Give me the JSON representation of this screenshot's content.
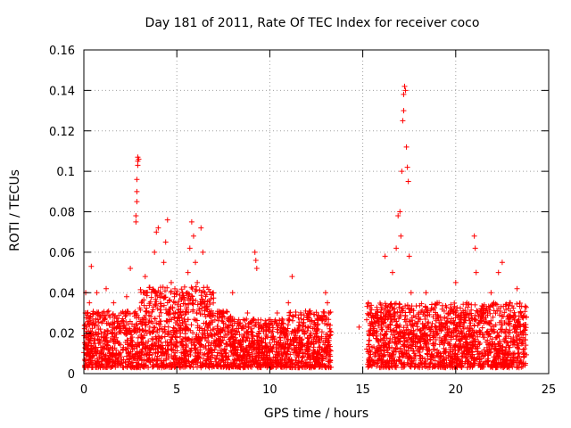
{
  "chart_data": {
    "type": "scatter",
    "title": "Day 181 of 2011, Rate Of TEC Index for receiver coco",
    "xlabel": "GPS time / hours",
    "ylabel": "ROTI / TECUs",
    "xlim": [
      0,
      25
    ],
    "ylim": [
      0,
      0.16
    ],
    "xticks": [
      0,
      5,
      10,
      15,
      20,
      25
    ],
    "xtick_labels": [
      "0",
      "5",
      "10",
      "15",
      "20",
      "25"
    ],
    "yticks": [
      0,
      0.02,
      0.04,
      0.06,
      0.08,
      0.1,
      0.12,
      0.14,
      0.16
    ],
    "ytick_labels": [
      "0",
      "0.02",
      "0.04",
      "0.06",
      "0.08",
      "0.1",
      "0.12",
      "0.14",
      "0.16"
    ],
    "grid": true,
    "marker": "+",
    "series": [
      {
        "name": "ROTI",
        "color": "#ff0000",
        "points": [
          [
            0.05,
            0.007
          ],
          [
            0.1,
            0.04
          ],
          [
            0.15,
            0.018
          ],
          [
            0.2,
            0.03
          ],
          [
            0.25,
            0.012
          ],
          [
            0.3,
            0.035
          ],
          [
            0.35,
            0.02
          ],
          [
            0.4,
            0.053
          ],
          [
            0.45,
            0.01
          ],
          [
            0.5,
            0.025
          ],
          [
            0.6,
            0.015
          ],
          [
            0.7,
            0.04
          ],
          [
            0.8,
            0.022
          ],
          [
            0.9,
            0.01
          ],
          [
            1.0,
            0.03
          ],
          [
            1.1,
            0.018
          ],
          [
            1.2,
            0.042
          ],
          [
            1.3,
            0.012
          ],
          [
            1.4,
            0.028
          ],
          [
            1.5,
            0.02
          ],
          [
            1.6,
            0.035
          ],
          [
            1.7,
            0.009
          ],
          [
            1.8,
            0.025
          ],
          [
            1.9,
            0.015
          ],
          [
            2.0,
            0.03
          ],
          [
            2.1,
            0.012
          ],
          [
            2.2,
            0.02
          ],
          [
            2.3,
            0.038
          ],
          [
            2.4,
            0.01
          ],
          [
            2.5,
            0.052
          ],
          [
            2.6,
            0.018
          ],
          [
            2.7,
            0.03
          ],
          [
            2.8,
            0.075
          ],
          [
            2.8,
            0.078
          ],
          [
            2.85,
            0.085
          ],
          [
            2.85,
            0.09
          ],
          [
            2.85,
            0.096
          ],
          [
            2.9,
            0.103
          ],
          [
            2.9,
            0.105
          ],
          [
            2.9,
            0.107
          ],
          [
            2.95,
            0.106
          ],
          [
            3.0,
            0.022
          ],
          [
            3.1,
            0.035
          ],
          [
            3.2,
            0.015
          ],
          [
            3.3,
            0.048
          ],
          [
            3.4,
            0.02
          ],
          [
            3.5,
            0.03
          ],
          [
            3.6,
            0.012
          ],
          [
            3.7,
            0.025
          ],
          [
            3.8,
            0.06
          ],
          [
            3.9,
            0.07
          ],
          [
            4.0,
            0.072
          ],
          [
            4.1,
            0.04
          ],
          [
            4.2,
            0.018
          ],
          [
            4.3,
            0.055
          ],
          [
            4.4,
            0.065
          ],
          [
            4.5,
            0.076
          ],
          [
            4.6,
            0.03
          ],
          [
            4.7,
            0.045
          ],
          [
            4.8,
            0.012
          ],
          [
            4.9,
            0.035
          ],
          [
            5.0,
            0.02
          ],
          [
            5.1,
            0.028
          ],
          [
            5.2,
            0.015
          ],
          [
            5.3,
            0.04
          ],
          [
            5.4,
            0.01
          ],
          [
            5.5,
            0.03
          ],
          [
            5.6,
            0.05
          ],
          [
            5.7,
            0.062
          ],
          [
            5.8,
            0.075
          ],
          [
            5.9,
            0.068
          ],
          [
            6.0,
            0.055
          ],
          [
            6.1,
            0.045
          ],
          [
            6.2,
            0.032
          ],
          [
            6.3,
            0.072
          ],
          [
            6.4,
            0.06
          ],
          [
            6.5,
            0.04
          ],
          [
            6.6,
            0.025
          ],
          [
            6.7,
            0.018
          ],
          [
            6.8,
            0.03
          ],
          [
            6.9,
            0.012
          ],
          [
            7.0,
            0.022
          ],
          [
            7.2,
            0.015
          ],
          [
            7.4,
            0.028
          ],
          [
            7.6,
            0.01
          ],
          [
            7.8,
            0.02
          ],
          [
            8.0,
            0.04
          ],
          [
            8.2,
            0.012
          ],
          [
            8.4,
            0.025
          ],
          [
            8.6,
            0.018
          ],
          [
            8.8,
            0.03
          ],
          [
            9.0,
            0.015
          ],
          [
            9.2,
            0.06
          ],
          [
            9.25,
            0.056
          ],
          [
            9.3,
            0.052
          ],
          [
            9.4,
            0.02
          ],
          [
            9.6,
            0.01
          ],
          [
            9.8,
            0.025
          ],
          [
            10.0,
            0.008
          ],
          [
            10.2,
            0.018
          ],
          [
            10.4,
            0.03
          ],
          [
            10.6,
            0.012
          ],
          [
            10.8,
            0.022
          ],
          [
            11.0,
            0.035
          ],
          [
            11.2,
            0.048
          ],
          [
            11.4,
            0.02
          ],
          [
            11.6,
            0.01
          ],
          [
            11.8,
            0.025
          ],
          [
            12.0,
            0.015
          ],
          [
            12.2,
            0.03
          ],
          [
            12.4,
            0.018
          ],
          [
            12.6,
            0.022
          ],
          [
            12.8,
            0.028
          ],
          [
            13.0,
            0.04
          ],
          [
            13.1,
            0.035
          ],
          [
            13.2,
            0.03
          ],
          [
            14.8,
            0.023
          ],
          [
            15.3,
            0.035
          ],
          [
            15.4,
            0.03
          ],
          [
            15.5,
            0.025
          ],
          [
            15.6,
            0.02
          ],
          [
            15.8,
            0.028
          ],
          [
            16.0,
            0.022
          ],
          [
            16.2,
            0.058
          ],
          [
            16.4,
            0.03
          ],
          [
            16.6,
            0.05
          ],
          [
            16.8,
            0.062
          ],
          [
            16.9,
            0.078
          ],
          [
            17.0,
            0.08
          ],
          [
            17.05,
            0.068
          ],
          [
            17.1,
            0.1
          ],
          [
            17.15,
            0.125
          ],
          [
            17.2,
            0.13
          ],
          [
            17.2,
            0.138
          ],
          [
            17.25,
            0.142
          ],
          [
            17.3,
            0.14
          ],
          [
            17.35,
            0.112
          ],
          [
            17.4,
            0.102
          ],
          [
            17.45,
            0.095
          ],
          [
            17.5,
            0.058
          ],
          [
            17.6,
            0.04
          ],
          [
            17.8,
            0.025
          ],
          [
            18.0,
            0.03
          ],
          [
            18.2,
            0.018
          ],
          [
            18.4,
            0.04
          ],
          [
            18.6,
            0.022
          ],
          [
            18.8,
            0.012
          ],
          [
            19.0,
            0.035
          ],
          [
            19.2,
            0.025
          ],
          [
            19.4,
            0.015
          ],
          [
            19.6,
            0.03
          ],
          [
            19.8,
            0.02
          ],
          [
            20.0,
            0.045
          ],
          [
            20.2,
            0.028
          ],
          [
            20.4,
            0.01
          ],
          [
            20.6,
            0.035
          ],
          [
            20.8,
            0.025
          ],
          [
            21.0,
            0.068
          ],
          [
            21.05,
            0.062
          ],
          [
            21.1,
            0.05
          ],
          [
            21.3,
            0.015
          ],
          [
            21.5,
            0.03
          ],
          [
            21.7,
            0.02
          ],
          [
            21.9,
            0.04
          ],
          [
            22.1,
            0.012
          ],
          [
            22.3,
            0.05
          ],
          [
            22.5,
            0.055
          ],
          [
            22.7,
            0.025
          ],
          [
            22.9,
            0.035
          ],
          [
            23.1,
            0.018
          ],
          [
            23.3,
            0.042
          ],
          [
            23.5,
            0.03
          ],
          [
            23.6,
            0.015
          ],
          [
            23.7,
            0.01
          ]
        ]
      }
    ]
  }
}
